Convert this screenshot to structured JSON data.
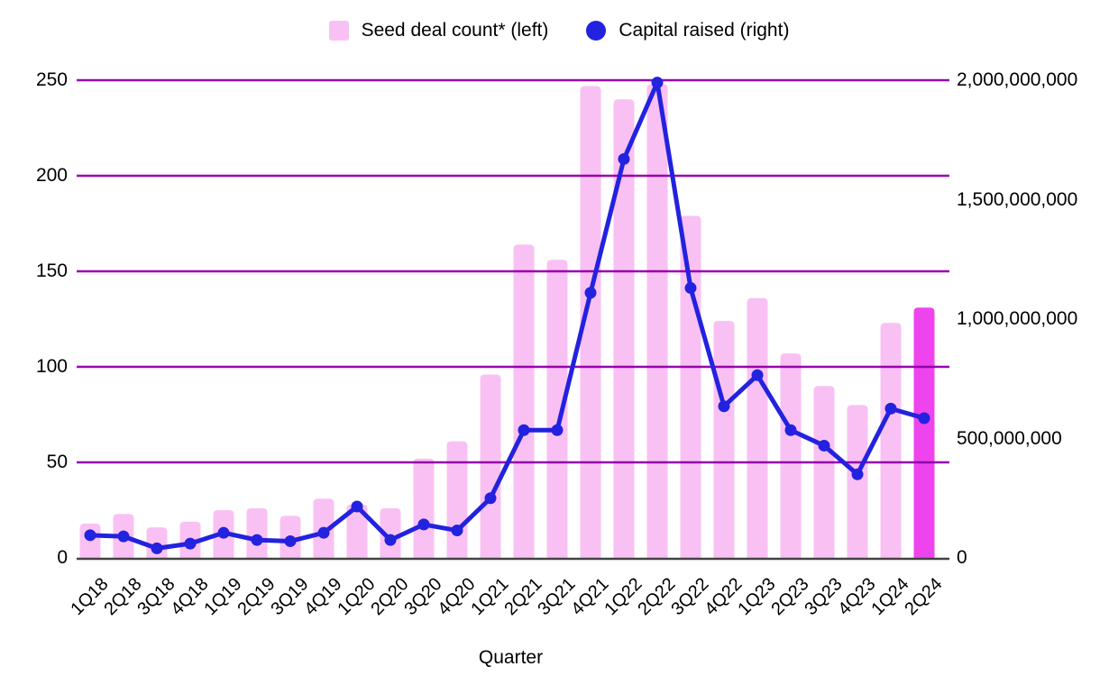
{
  "legend": {
    "bars_label": "Seed deal count* (left)",
    "line_label": "Capital raised (right)"
  },
  "axes": {
    "left": {
      "tick_values": [
        0,
        50,
        100,
        150,
        200,
        250
      ],
      "tick_labels": [
        "0",
        "50",
        "100",
        "150",
        "200",
        "250"
      ]
    },
    "right": {
      "tick_values": [
        0,
        500000000,
        1000000000,
        1500000000,
        2000000000
      ],
      "tick_labels": [
        "0",
        "500,000,000",
        "1,000,000,000",
        "1,500,000,000",
        "2,000,000,000"
      ]
    },
    "x_title": "Quarter"
  },
  "colors": {
    "bar_pink": "#F9C1F3",
    "bar_highlight": "#EE44EE",
    "line_blue": "#2222DF",
    "gridline_purple": "#9A00B4",
    "axis_line": "#424242",
    "text": "#000000",
    "background": "#FFFFFF"
  },
  "chart_data": {
    "type": "bar+line combo, dual axis",
    "title": "",
    "xlabel": "Quarter",
    "categories": [
      "1Q18",
      "2Q18",
      "3Q18",
      "4Q18",
      "1Q19",
      "2Q19",
      "3Q19",
      "4Q19",
      "1Q20",
      "2Q20",
      "3Q20",
      "4Q20",
      "1Q21",
      "2Q21",
      "3Q21",
      "4Q21",
      "1Q22",
      "2Q22",
      "3Q22",
      "4Q22",
      "1Q23",
      "2Q23",
      "3Q23",
      "4Q23",
      "1Q24",
      "2Q24"
    ],
    "series": [
      {
        "name": "Seed deal count* (left)",
        "type": "bar",
        "axis": "left",
        "values": [
          18,
          23,
          16,
          19,
          25,
          26,
          22,
          31,
          28,
          26,
          52,
          61,
          96,
          164,
          156,
          247,
          240,
          248,
          179,
          124,
          136,
          107,
          90,
          80,
          123,
          131
        ]
      },
      {
        "name": "Capital raised (right)",
        "type": "line",
        "axis": "right",
        "values": [
          95000000,
          90000000,
          40000000,
          60000000,
          105000000,
          75000000,
          70000000,
          105000000,
          215000000,
          75000000,
          140000000,
          115000000,
          250000000,
          535000000,
          535000000,
          1110000000,
          1670000000,
          1990000000,
          1130000000,
          635000000,
          765000000,
          535000000,
          470000000,
          350000000,
          625000000,
          585000000
        ]
      }
    ],
    "left_ylim": [
      0,
      250
    ],
    "right_ylim": [
      0,
      2000000000
    ],
    "highlighted_category": "2Q24",
    "grid": "horizontal purple lines at left-axis ticks",
    "legend_position": "top-center"
  }
}
